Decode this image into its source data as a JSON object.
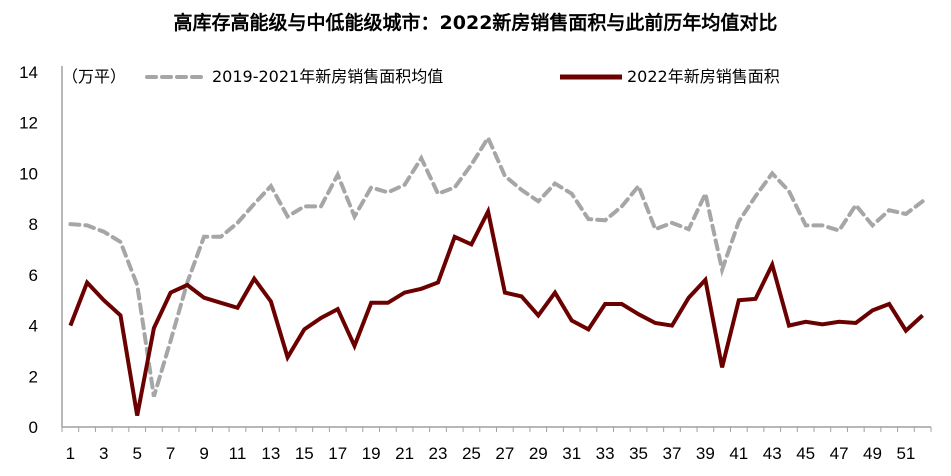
{
  "title": "高库存高能级与中低能级城市：2022新房销售面积与此前历年均值对比",
  "unit_label": "（万平）",
  "legend": [
    {
      "label": "2019-2021年新房销售面积均值",
      "style": "dashed",
      "color": "#a6a6a6"
    },
    {
      "label": "2022年新房销售面积",
      "style": "solid",
      "color": "#6b0000"
    }
  ],
  "colors": {
    "avg": "#a6a6a6",
    "y2022": "#6b0000",
    "axis": "#a0a0a0"
  },
  "chart_data": {
    "type": "line",
    "title": "高库存高能级与中低能级城市：2022新房销售面积与此前历年均值对比",
    "xlabel": "",
    "ylabel": "万平",
    "ylim": [
      0,
      14
    ],
    "yticks": [
      0,
      2,
      4,
      6,
      8,
      10,
      12,
      14
    ],
    "xtick_labels": [
      "1",
      "3",
      "5",
      "7",
      "9",
      "11",
      "13",
      "15",
      "17",
      "19",
      "21",
      "23",
      "25",
      "27",
      "29",
      "31",
      "33",
      "35",
      "37",
      "39",
      "41",
      "43",
      "45",
      "47",
      "49",
      "51"
    ],
    "x": [
      1,
      2,
      3,
      4,
      5,
      6,
      7,
      8,
      9,
      10,
      11,
      12,
      13,
      14,
      15,
      16,
      17,
      18,
      19,
      20,
      21,
      22,
      23,
      24,
      25,
      26,
      27,
      28,
      29,
      30,
      31,
      32,
      33,
      34,
      35,
      36,
      37,
      38,
      39,
      40,
      41,
      42,
      43,
      44,
      45,
      46,
      47,
      48,
      49,
      50,
      51,
      52
    ],
    "grid": false,
    "legend_position": "top",
    "series": [
      {
        "name": "2019-2021年新房销售面积均值",
        "style": "dashed",
        "values": [
          8.0,
          7.95,
          7.7,
          7.3,
          5.6,
          1.2,
          3.4,
          5.7,
          7.5,
          7.5,
          8.05,
          8.8,
          9.5,
          8.3,
          8.7,
          8.7,
          9.95,
          8.3,
          9.45,
          9.25,
          9.55,
          10.6,
          9.2,
          9.45,
          10.35,
          11.4,
          9.9,
          9.35,
          8.9,
          9.6,
          9.2,
          8.2,
          8.15,
          8.7,
          9.5,
          7.8,
          8.05,
          7.8,
          9.2,
          6.2,
          8.1,
          9.1,
          10.0,
          9.3,
          7.95,
          7.95,
          7.75,
          8.75,
          7.95,
          8.55,
          8.4,
          8.9
        ]
      },
      {
        "name": "2022年新房销售面积",
        "style": "solid",
        "values": [
          4.0,
          5.7,
          5.0,
          4.4,
          0.45,
          3.9,
          5.3,
          5.6,
          5.1,
          4.9,
          4.7,
          5.85,
          4.95,
          2.75,
          3.85,
          4.3,
          4.65,
          3.2,
          4.9,
          4.9,
          5.3,
          5.45,
          5.7,
          7.5,
          7.2,
          8.5,
          5.3,
          5.15,
          4.4,
          5.3,
          4.2,
          3.85,
          4.85,
          4.85,
          4.45,
          4.1,
          4.0,
          5.1,
          5.8,
          2.35,
          5.0,
          5.05,
          6.4,
          4.0,
          4.15,
          4.05,
          4.15,
          4.1,
          4.6,
          4.85,
          3.8,
          4.4
        ]
      }
    ]
  }
}
